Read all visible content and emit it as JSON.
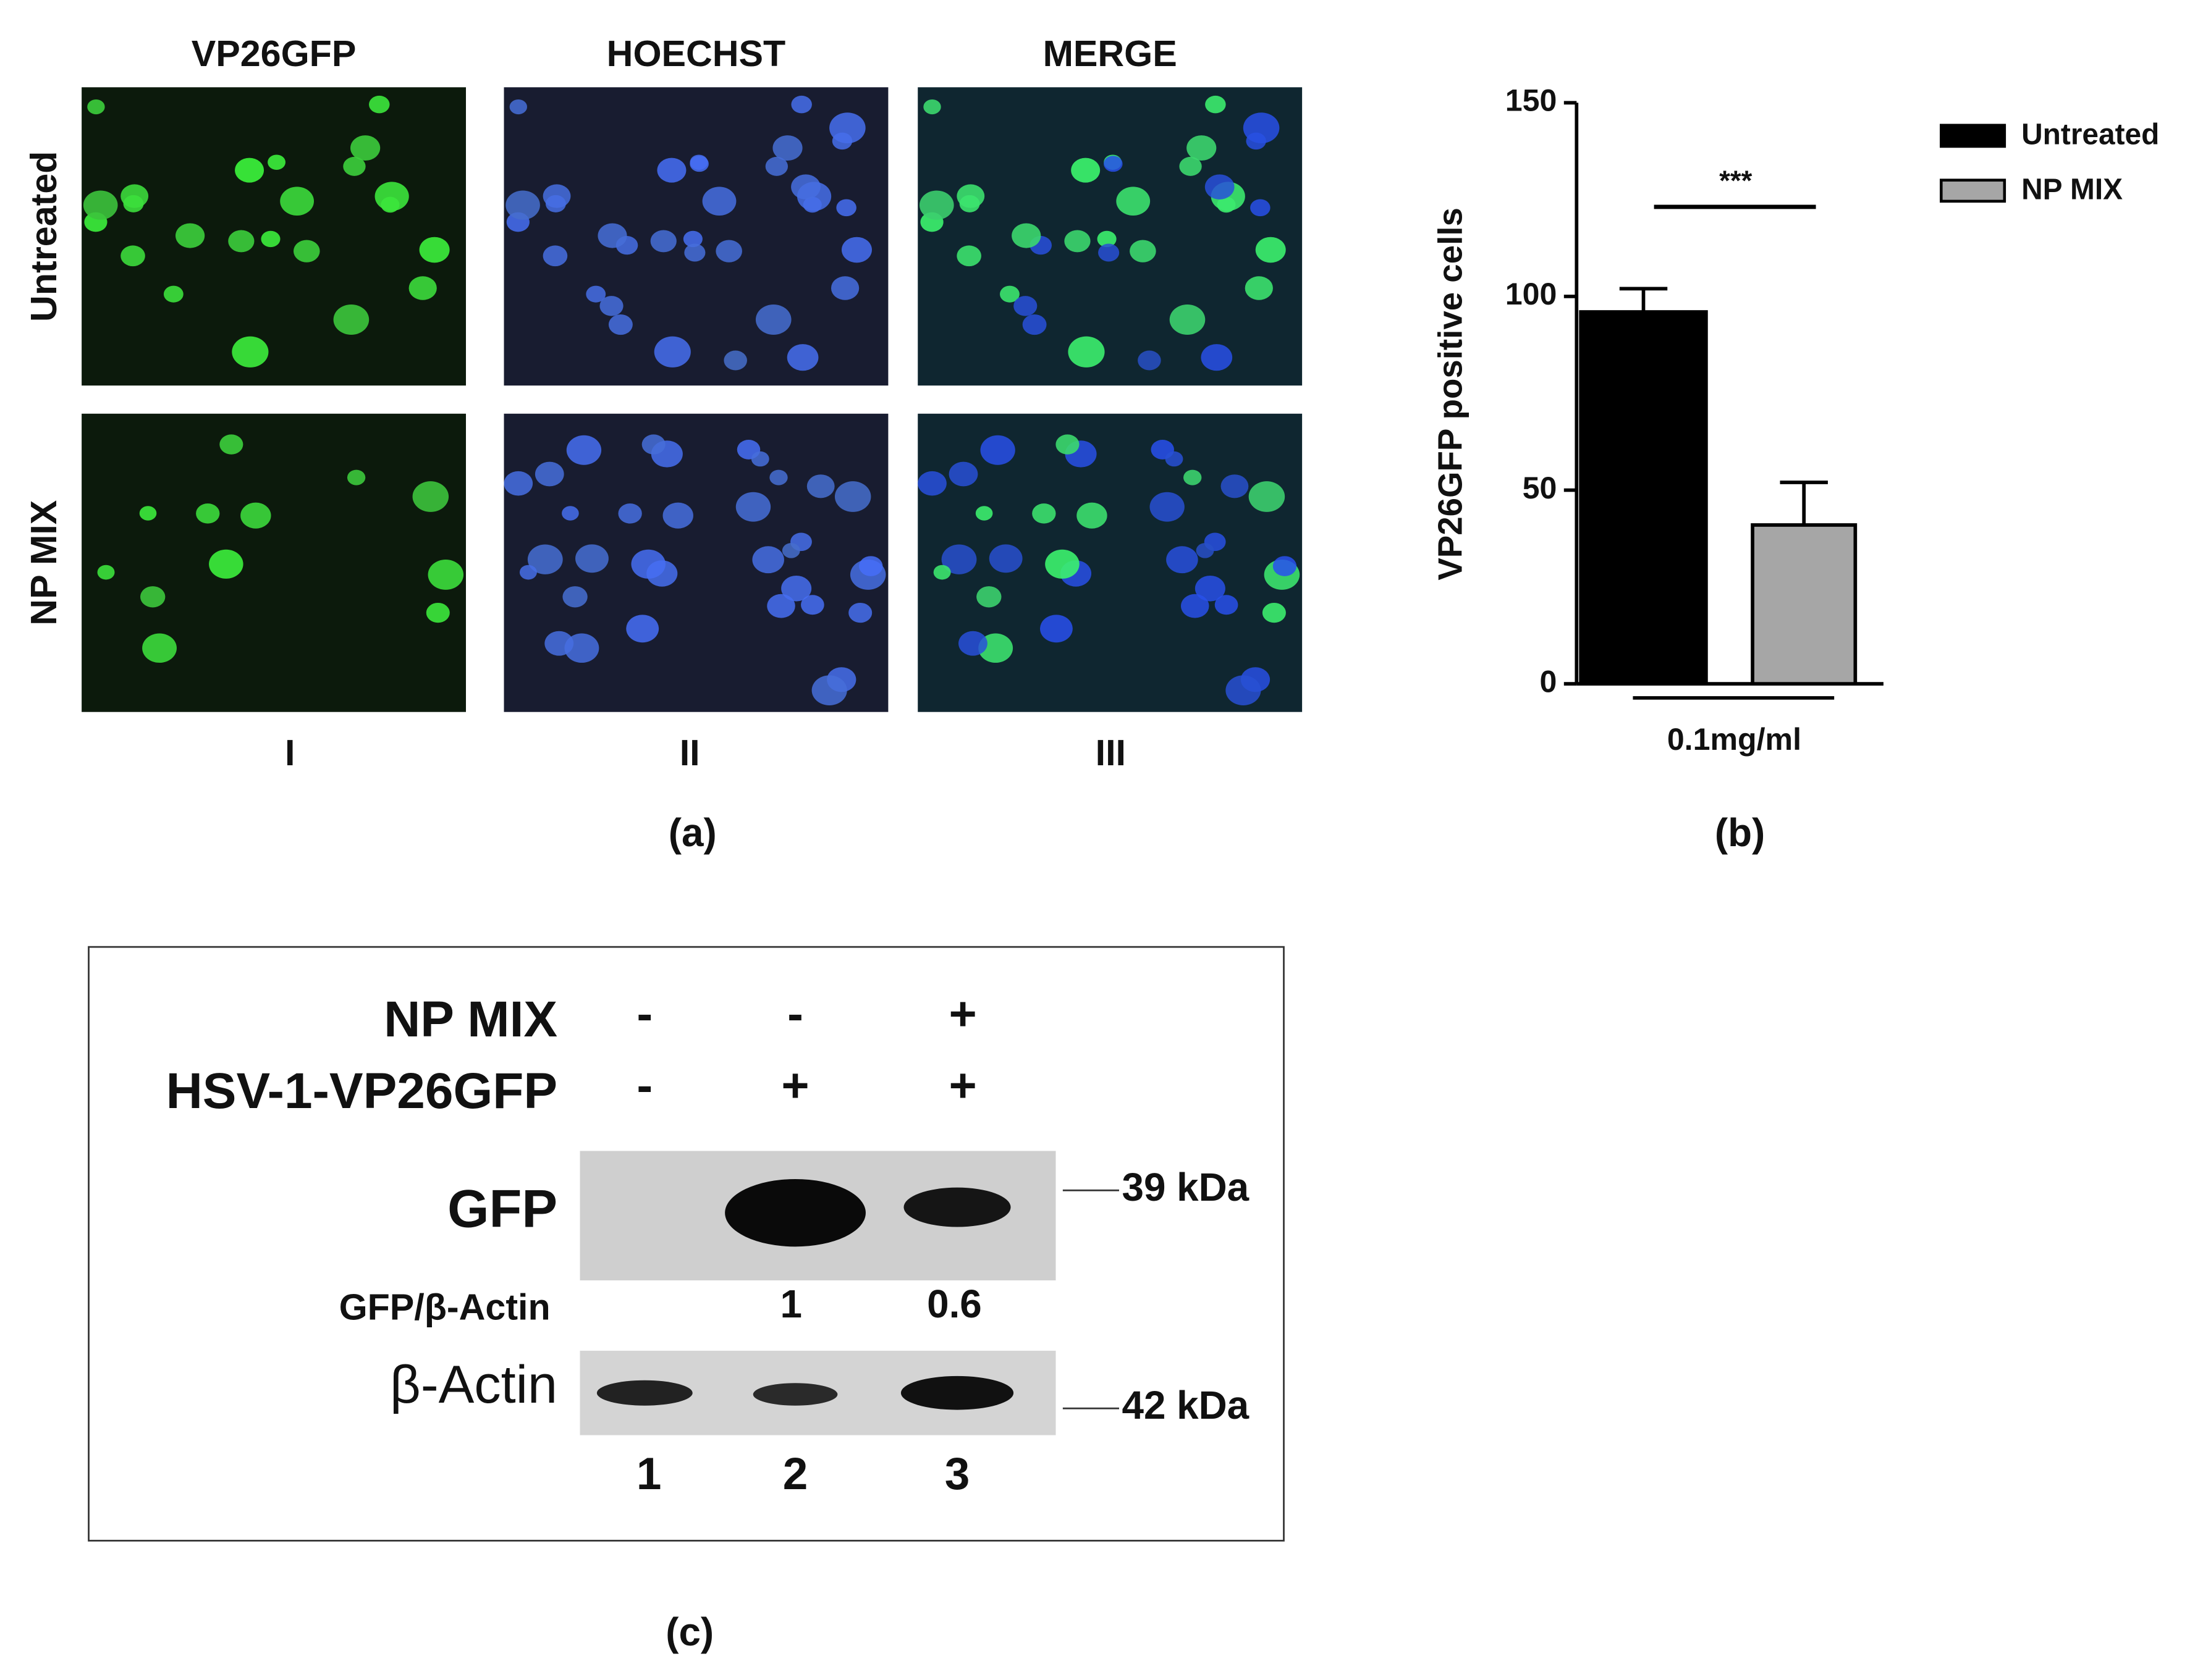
{
  "panel_a": {
    "label": "(a)",
    "columns": [
      "VP26GFP",
      "HOECHST",
      "MERGE"
    ],
    "rows": [
      "Untreated",
      "NP MIX"
    ],
    "numerals": [
      "I",
      "II",
      "III"
    ]
  },
  "chart_data": {
    "type": "bar",
    "panel_label": "(b)",
    "ylabel": "VP26GFP positive cells",
    "categories": [
      "0.1mg/ml"
    ],
    "series": [
      {
        "name": "Untreated",
        "color": "#000000",
        "values": [
          96
        ],
        "errors": [
          6
        ]
      },
      {
        "name": "NP MIX",
        "color": "#a6a6a6",
        "values": [
          41
        ],
        "errors": [
          11
        ]
      }
    ],
    "ylim": [
      0,
      150
    ],
    "yticks": [
      0,
      50,
      100,
      150
    ],
    "annotation": "***",
    "legend": "upper right"
  },
  "panel_c": {
    "label": "(c)",
    "treatments": [
      {
        "name": "NP MIX",
        "signs": [
          "-",
          "-",
          "+"
        ]
      },
      {
        "name": "HSV-1-VP26GFP",
        "signs": [
          "-",
          "+",
          "+"
        ]
      }
    ],
    "blots": [
      {
        "name": "GFP",
        "marker": "39 kDa"
      },
      {
        "name": "β-Actin",
        "marker": "42 kDa"
      }
    ],
    "ratio": {
      "label": "GFP/β-Actin",
      "values": [
        1,
        0.6
      ]
    },
    "lanes": [
      1,
      2,
      3
    ]
  }
}
